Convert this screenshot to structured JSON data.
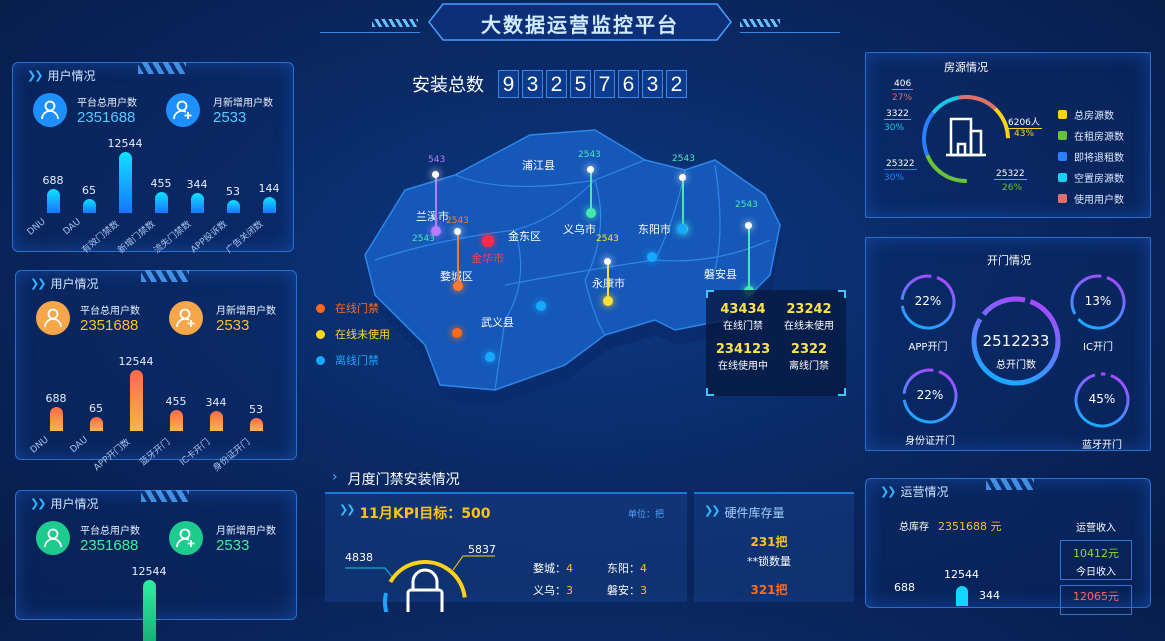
{
  "header": {
    "title": "大数据运营监控平台"
  },
  "install_total": {
    "label": "安装总数",
    "digits": [
      "9",
      "3",
      "2",
      "5",
      "7",
      "6",
      "3",
      "2"
    ]
  },
  "user_panels": [
    {
      "title": "用户情况",
      "total_label": "平台总用户数",
      "total_value": "2351688",
      "new_label": "月新增用户数",
      "new_value": "2533",
      "accent": "#1e8fff",
      "value_color": "#5cc8ff",
      "bars": [
        {
          "label": "DNU",
          "value": 688
        },
        {
          "label": "DAU",
          "value": 65
        },
        {
          "label": "有效门禁数",
          "value": 12544
        },
        {
          "label": "新增门禁数",
          "value": 455
        },
        {
          "label": "流失门禁数",
          "value": 344
        },
        {
          "label": "APP投诉数",
          "value": 53
        },
        {
          "label": "广告关闭数",
          "value": 144
        }
      ]
    },
    {
      "title": "用户情况",
      "total_label": "平台总用户数",
      "total_value": "2351688",
      "new_label": "月新增用户数",
      "new_value": "2533",
      "accent": "#f7a64a",
      "value_color": "#ffc21a",
      "bars": [
        {
          "label": "DNU",
          "value": 688
        },
        {
          "label": "DAU",
          "value": 65
        },
        {
          "label": "APP开门数",
          "value": 12544
        },
        {
          "label": "蓝牙开门",
          "value": 455
        },
        {
          "label": "IC卡开门",
          "value": 344
        },
        {
          "label": "身份证开门",
          "value": 53
        }
      ]
    },
    {
      "title": "用户情况",
      "total_label": "平台总用户数",
      "total_value": "2351688",
      "new_label": "月新增用户数",
      "new_value": "2533",
      "accent": "#1ecb8e",
      "value_color": "#3cf09a",
      "bars": [
        {
          "label": "",
          "value": 12544
        }
      ]
    }
  ],
  "map": {
    "regions": [
      "浦江县",
      "兰溪市",
      "金东区",
      "义乌市",
      "东阳市",
      "婺城区",
      "永康市",
      "磐安县",
      "武义县"
    ],
    "city": "金华市",
    "pins": [
      {
        "value": "543",
        "color": "#b77cff"
      },
      {
        "value": "2543",
        "color": "#ff7a2a"
      },
      {
        "value": "2543",
        "color": "#49e6b5"
      },
      {
        "value": "2543",
        "color": "#49e6b5"
      },
      {
        "value": "2543",
        "color": "#49e6b5"
      },
      {
        "value": "2543",
        "color": "#ffe033"
      },
      {
        "value": "2543",
        "color": "#49e6b5"
      }
    ],
    "legend": [
      {
        "label": "在线门禁",
        "color": "#ff6a1a"
      },
      {
        "label": "在线未使用",
        "color": "#ffd91a"
      },
      {
        "label": "离线门禁",
        "color": "#17a7ff"
      }
    ],
    "stats": [
      {
        "value": "43434",
        "label": "在线门禁"
      },
      {
        "value": "23242",
        "label": "在线未使用"
      },
      {
        "value": "234123",
        "label": "在线使用中"
      },
      {
        "value": "2322",
        "label": "离线门禁"
      }
    ]
  },
  "housing": {
    "title": "房源情况",
    "callouts": [
      {
        "value": "406",
        "pct": "27%",
        "color": "#e0706e"
      },
      {
        "value": "3322",
        "pct": "30%",
        "color": "#18c6e8"
      },
      {
        "value": "25322",
        "pct": "30%",
        "color": "#2a7fff"
      },
      {
        "value": "6206人",
        "pct": "43%",
        "color": "#ffd21a"
      },
      {
        "value": "25322",
        "pct": "26%",
        "color": "#6ac13a"
      }
    ],
    "legend": [
      {
        "label": "总房源数",
        "color": "#ffd21a"
      },
      {
        "label": "在租房源数",
        "color": "#6ac13a"
      },
      {
        "label": "即将退租数",
        "color": "#2a7fff"
      },
      {
        "label": "空置房源数",
        "color": "#18d0f0"
      },
      {
        "label": "使用用户数",
        "color": "#e0706e"
      }
    ],
    "icon": "building-icon"
  },
  "doors": {
    "title": "开门情况",
    "center": {
      "value": "2512233",
      "label": "总开门数",
      "fraction": 0.78
    },
    "rings": [
      {
        "pct": 22,
        "text": "22%",
        "label": "APP开门"
      },
      {
        "pct": 13,
        "text": "13%",
        "label": "IC开门"
      },
      {
        "pct": 22,
        "text": "22%",
        "label": "身份证开门"
      },
      {
        "pct": 45,
        "text": "45%",
        "label": "蓝牙开门"
      }
    ]
  },
  "monthly": {
    "title": "月度门禁安装情况",
    "kpi": {
      "title": "11月KPI目标：500",
      "unit": "单位：把",
      "left_value": "4838",
      "right_value": "5837",
      "items": [
        {
          "name": "婺城：",
          "value": "4"
        },
        {
          "name": "东阳：",
          "value": "4"
        },
        {
          "name": "义乌：",
          "value": "3"
        },
        {
          "name": "磐安：",
          "value": "3"
        }
      ]
    },
    "hardware": {
      "title": "硬件库存量",
      "v1": "231把",
      "l1": "**锁数量",
      "v2": "321把"
    }
  },
  "ops": {
    "title": "运营情况",
    "stock_label": "总库存",
    "stock_value": "2351688 元",
    "income_label": "运营收入",
    "today_value": "10412元",
    "today_label": "今日收入",
    "values": [
      "688",
      "12544",
      "344"
    ],
    "next_value": "12065元"
  }
}
